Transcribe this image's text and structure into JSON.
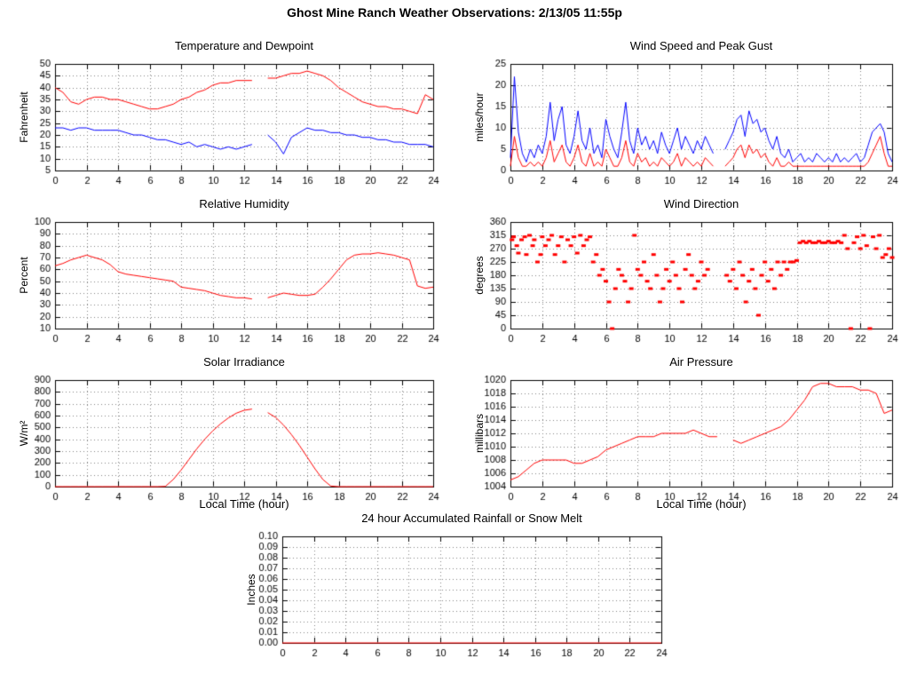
{
  "page": {
    "title": "Ghost Mine Ranch Weather Observations: 2/13/05 11:55p"
  },
  "colors": {
    "series_red": "#ff0000",
    "series_blue": "#0000ff",
    "grid": "#808080",
    "frame": "#000000"
  },
  "chart_data": [
    {
      "id": "temperature_dewpoint",
      "type": "line",
      "title": "Temperature and Dewpoint",
      "ylabel": "Fahrenheit",
      "xlim": [
        0,
        24
      ],
      "xtick": 2,
      "ylim": [
        5,
        50
      ],
      "ytick": 5,
      "ydec": 0,
      "x_step": 0.5,
      "series": [
        {
          "name": "Temperature",
          "color": "#ff0000",
          "values": [
            40,
            38,
            34,
            33,
            35,
            36,
            36,
            35,
            35,
            34,
            33,
            32,
            31,
            31,
            32,
            33,
            35,
            36,
            38,
            39,
            41,
            42,
            42,
            43,
            43,
            43,
            null,
            44,
            44,
            45,
            46,
            46,
            47,
            46,
            45,
            43,
            40,
            38,
            36,
            34,
            33,
            32,
            32,
            31,
            31,
            30,
            29,
            37,
            35
          ]
        },
        {
          "name": "Dewpoint",
          "color": "#0000ff",
          "values": [
            23,
            23,
            22,
            23,
            23,
            22,
            22,
            22,
            22,
            21,
            20,
            20,
            19,
            18,
            18,
            17,
            16,
            17,
            15,
            16,
            15,
            14,
            15,
            14,
            15,
            16,
            null,
            20,
            17,
            12,
            19,
            21,
            23,
            22,
            22,
            21,
            21,
            20,
            20,
            19,
            19,
            18,
            18,
            17,
            17,
            16,
            16,
            16,
            15
          ]
        }
      ]
    },
    {
      "id": "wind_speed_gust",
      "type": "line",
      "title": "Wind Speed and Peak Gust",
      "ylabel": "miles/hour",
      "xlim": [
        0,
        24
      ],
      "xtick": 2,
      "ylim": [
        0,
        25
      ],
      "ytick": 5,
      "ydec": 0,
      "x_step": 0.25,
      "series": [
        {
          "name": "Peak Gust",
          "color": "#0000ff",
          "values": [
            3,
            22,
            9,
            4,
            2,
            5,
            3,
            6,
            4,
            8,
            16,
            7,
            12,
            15,
            6,
            4,
            8,
            14,
            7,
            5,
            10,
            4,
            6,
            3,
            12,
            8,
            5,
            3,
            9,
            16,
            7,
            4,
            10,
            6,
            8,
            5,
            7,
            4,
            9,
            6,
            4,
            7,
            10,
            5,
            8,
            6,
            4,
            7,
            5,
            8,
            6,
            4,
            null,
            null,
            5,
            7,
            9,
            12,
            13,
            8,
            14,
            11,
            12,
            9,
            10,
            7,
            5,
            8,
            4,
            3,
            5,
            2,
            3,
            4,
            2,
            3,
            2,
            4,
            3,
            2,
            3,
            2,
            4,
            2,
            3,
            2,
            3,
            4,
            2,
            3,
            6,
            9,
            10,
            11,
            9,
            4,
            2
          ]
        },
        {
          "name": "Wind Speed",
          "color": "#ff0000",
          "values": [
            1,
            8,
            3,
            1,
            1,
            2,
            1,
            2,
            1,
            3,
            7,
            2,
            4,
            6,
            2,
            1,
            3,
            6,
            2,
            1,
            4,
            1,
            2,
            1,
            5,
            3,
            1,
            1,
            3,
            7,
            2,
            1,
            4,
            2,
            3,
            1,
            2,
            1,
            3,
            2,
            1,
            2,
            4,
            1,
            3,
            2,
            1,
            2,
            1,
            3,
            2,
            1,
            null,
            null,
            1,
            2,
            3,
            5,
            6,
            3,
            6,
            4,
            5,
            3,
            4,
            2,
            1,
            3,
            1,
            1,
            2,
            1,
            1,
            1,
            1,
            1,
            1,
            1,
            1,
            1,
            1,
            1,
            1,
            1,
            1,
            1,
            1,
            1,
            1,
            1,
            2,
            4,
            6,
            8,
            4,
            1,
            1
          ]
        }
      ]
    },
    {
      "id": "relative_humidity",
      "type": "line",
      "title": "Relative Humidity",
      "ylabel": "Percent",
      "xlim": [
        0,
        24
      ],
      "xtick": 2,
      "ylim": [
        10,
        100
      ],
      "ytick": 10,
      "ydec": 0,
      "x_step": 0.5,
      "series": [
        {
          "name": "Relative Humidity",
          "color": "#ff0000",
          "values": [
            63,
            65,
            68,
            70,
            72,
            70,
            68,
            64,
            58,
            56,
            55,
            54,
            53,
            52,
            51,
            50,
            45,
            44,
            43,
            42,
            40,
            38,
            37,
            36,
            36,
            35,
            null,
            36,
            38,
            40,
            39,
            38,
            38,
            39,
            45,
            52,
            60,
            68,
            72,
            73,
            73,
            74,
            73,
            72,
            70,
            68,
            46,
            44,
            45
          ]
        }
      ]
    },
    {
      "id": "wind_direction",
      "type": "scatter",
      "title": "Wind Direction",
      "ylabel": "degrees",
      "color": "#ff0000",
      "xlim": [
        0,
        24
      ],
      "xtick": 2,
      "ylim": [
        0,
        360
      ],
      "ytick": 45,
      "ydec": 0,
      "points": [
        [
          0.1,
          300
        ],
        [
          0.2,
          310
        ],
        [
          0.4,
          280
        ],
        [
          0.5,
          255
        ],
        [
          0.7,
          300
        ],
        [
          0.9,
          310
        ],
        [
          1.0,
          250
        ],
        [
          1.2,
          315
        ],
        [
          1.4,
          280
        ],
        [
          1.5,
          300
        ],
        [
          1.7,
          225
        ],
        [
          1.9,
          250
        ],
        [
          2.0,
          310
        ],
        [
          2.2,
          280
        ],
        [
          2.4,
          300
        ],
        [
          2.6,
          315
        ],
        [
          2.8,
          250
        ],
        [
          3.0,
          280
        ],
        [
          3.2,
          310
        ],
        [
          3.4,
          225
        ],
        [
          3.6,
          300
        ],
        [
          3.8,
          280
        ],
        [
          4.0,
          310
        ],
        [
          4.2,
          255
        ],
        [
          4.4,
          315
        ],
        [
          4.6,
          280
        ],
        [
          4.8,
          300
        ],
        [
          5.0,
          310
        ],
        [
          5.2,
          225
        ],
        [
          5.4,
          250
        ],
        [
          5.6,
          180
        ],
        [
          5.8,
          200
        ],
        [
          6.0,
          160
        ],
        [
          6.2,
          90
        ],
        [
          6.4,
          0
        ],
        [
          6.6,
          135
        ],
        [
          6.8,
          200
        ],
        [
          7.0,
          180
        ],
        [
          7.2,
          160
        ],
        [
          7.4,
          90
        ],
        [
          7.6,
          135
        ],
        [
          7.8,
          315
        ],
        [
          8.0,
          200
        ],
        [
          8.2,
          180
        ],
        [
          8.4,
          225
        ],
        [
          8.6,
          160
        ],
        [
          8.8,
          135
        ],
        [
          9.0,
          250
        ],
        [
          9.2,
          180
        ],
        [
          9.4,
          90
        ],
        [
          9.6,
          135
        ],
        [
          9.8,
          200
        ],
        [
          10.0,
          160
        ],
        [
          10.2,
          225
        ],
        [
          10.4,
          180
        ],
        [
          10.6,
          135
        ],
        [
          10.8,
          90
        ],
        [
          11.0,
          200
        ],
        [
          11.2,
          250
        ],
        [
          11.4,
          180
        ],
        [
          11.6,
          135
        ],
        [
          11.8,
          160
        ],
        [
          12.0,
          225
        ],
        [
          12.2,
          180
        ],
        [
          12.4,
          200
        ],
        [
          13.6,
          180
        ],
        [
          13.8,
          160
        ],
        [
          14.0,
          200
        ],
        [
          14.2,
          135
        ],
        [
          14.4,
          225
        ],
        [
          14.6,
          180
        ],
        [
          14.8,
          90
        ],
        [
          15.0,
          160
        ],
        [
          15.2,
          200
        ],
        [
          15.4,
          135
        ],
        [
          15.6,
          45
        ],
        [
          15.8,
          180
        ],
        [
          16.0,
          225
        ],
        [
          16.2,
          160
        ],
        [
          16.4,
          200
        ],
        [
          16.6,
          135
        ],
        [
          16.8,
          225
        ],
        [
          17.0,
          180
        ],
        [
          17.2,
          225
        ],
        [
          17.4,
          200
        ],
        [
          17.6,
          225
        ],
        [
          17.8,
          225
        ],
        [
          18.0,
          230
        ],
        [
          18.2,
          290
        ],
        [
          18.4,
          295
        ],
        [
          18.6,
          290
        ],
        [
          18.8,
          295
        ],
        [
          19.0,
          290
        ],
        [
          19.2,
          290
        ],
        [
          19.4,
          295
        ],
        [
          19.6,
          290
        ],
        [
          19.8,
          290
        ],
        [
          20.0,
          295
        ],
        [
          20.2,
          290
        ],
        [
          20.4,
          290
        ],
        [
          20.6,
          295
        ],
        [
          20.8,
          290
        ],
        [
          21.0,
          315
        ],
        [
          21.2,
          270
        ],
        [
          21.4,
          0
        ],
        [
          21.6,
          290
        ],
        [
          21.8,
          310
        ],
        [
          22.0,
          270
        ],
        [
          22.2,
          315
        ],
        [
          22.4,
          280
        ],
        [
          22.6,
          0
        ],
        [
          22.8,
          310
        ],
        [
          23.0,
          270
        ],
        [
          23.2,
          315
        ],
        [
          23.4,
          240
        ],
        [
          23.6,
          250
        ],
        [
          23.8,
          270
        ],
        [
          24.0,
          240
        ]
      ]
    },
    {
      "id": "solar_irradiance",
      "type": "line",
      "title": "Solar Irradiance",
      "ylabel": "W/m²",
      "xlabel": "Local Time (hour)",
      "xlim": [
        0,
        24
      ],
      "xtick": 2,
      "ylim": [
        0,
        900
      ],
      "ytick": 100,
      "ydec": 0,
      "x_step": 0.5,
      "series": [
        {
          "name": "Solar Irradiance",
          "color": "#ff0000",
          "values": [
            0,
            0,
            0,
            0,
            0,
            0,
            0,
            0,
            0,
            0,
            0,
            0,
            0,
            0,
            2,
            60,
            140,
            230,
            320,
            400,
            470,
            530,
            580,
            620,
            645,
            655,
            null,
            625,
            585,
            520,
            440,
            350,
            250,
            150,
            60,
            5,
            0,
            0,
            0,
            0,
            0,
            0,
            0,
            0,
            0,
            0,
            0,
            0,
            0
          ]
        }
      ]
    },
    {
      "id": "air_pressure",
      "type": "line",
      "title": "Air Pressure",
      "ylabel": "millibars",
      "xlabel": "Local Time (hour)",
      "xlim": [
        0,
        24
      ],
      "xtick": 2,
      "ylim": [
        1004,
        1020
      ],
      "ytick": 2,
      "ydec": 0,
      "x_step": 0.5,
      "series": [
        {
          "name": "Air Pressure",
          "color": "#ff0000",
          "values": [
            1005,
            1005.5,
            1006.5,
            1007.5,
            1008,
            1008,
            1008,
            1008,
            1007.5,
            1007.5,
            1008,
            1008.5,
            1009.5,
            1010,
            1010.5,
            1011,
            1011.5,
            1011.5,
            1011.5,
            1012,
            1012,
            1012,
            1012,
            1012.5,
            1012,
            1011.5,
            1011.5,
            null,
            1011,
            1010.5,
            1011,
            1011.5,
            1012,
            1012.5,
            1013,
            1014,
            1015.5,
            1017,
            1019,
            1019.5,
            1019.5,
            1019,
            1019,
            1019,
            1018.5,
            1018.5,
            1018,
            1015,
            1015.5
          ]
        }
      ]
    },
    {
      "id": "rainfall",
      "type": "line",
      "title": "24 hour Accumulated Rainfall or Snow Melt",
      "ylabel": "Inches",
      "xlim": [
        0,
        24
      ],
      "xtick": 2,
      "ylim": [
        0,
        0.1
      ],
      "ytick": 0.01,
      "ydec": 2,
      "x_step": 24,
      "series": [
        {
          "name": "Accumulated Rainfall",
          "color": "#ff0000",
          "values": [
            0,
            0
          ]
        }
      ]
    }
  ]
}
